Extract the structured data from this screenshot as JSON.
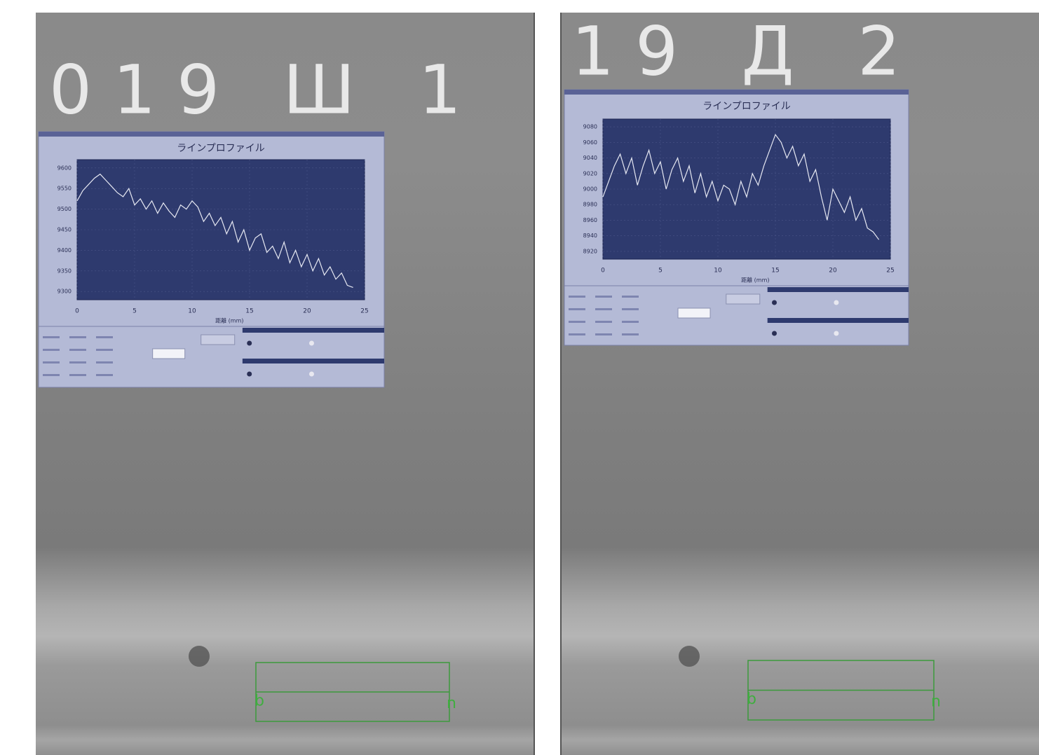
{
  "images": [
    {
      "stamp": "019 Ш 1",
      "markers": [
        "b",
        "n"
      ]
    },
    {
      "stamp": "19 Д 2",
      "markers": [
        "b",
        "n"
      ]
    }
  ],
  "chart_data": [
    {
      "type": "line",
      "title": "ラインプロファイル",
      "x_label": "距離 (mm)",
      "color": "#e6e8f2",
      "grid": true,
      "x": [
        0,
        0.5,
        1,
        1.5,
        2,
        2.5,
        3,
        3.5,
        4,
        4.5,
        5,
        5.5,
        6,
        6.5,
        7,
        7.5,
        8,
        8.5,
        9,
        9.5,
        10,
        10.5,
        11,
        11.5,
        12,
        12.5,
        13,
        13.5,
        14,
        14.5,
        15,
        15.5,
        16,
        16.5,
        17,
        17.5,
        18,
        18.5,
        19,
        19.5,
        20,
        20.5,
        21,
        21.5,
        22,
        22.5,
        23,
        23.5,
        24
      ],
      "values": [
        9520,
        9545,
        9560,
        9575,
        9585,
        9570,
        9555,
        9540,
        9530,
        9550,
        9510,
        9525,
        9500,
        9520,
        9490,
        9515,
        9495,
        9480,
        9510,
        9500,
        9520,
        9505,
        9470,
        9490,
        9460,
        9480,
        9440,
        9470,
        9420,
        9450,
        9400,
        9430,
        9440,
        9395,
        9410,
        9380,
        9420,
        9370,
        9400,
        9360,
        9390,
        9350,
        9380,
        9340,
        9360,
        9330,
        9345,
        9315,
        9310
      ],
      "xlim": [
        0,
        25
      ],
      "xticks": [
        0,
        5,
        10,
        15,
        20,
        25
      ],
      "ylim": [
        9280,
        9620
      ],
      "yticks": [
        9300,
        9350,
        9400,
        9450,
        9500,
        9550,
        9600
      ]
    },
    {
      "type": "line",
      "title": "ラインプロファイル",
      "x_label": "距離 (mm)",
      "color": "#e6e8f2",
      "grid": true,
      "x": [
        0,
        0.5,
        1,
        1.5,
        2,
        2.5,
        3,
        3.5,
        4,
        4.5,
        5,
        5.5,
        6,
        6.5,
        7,
        7.5,
        8,
        8.5,
        9,
        9.5,
        10,
        10.5,
        11,
        11.5,
        12,
        12.5,
        13,
        13.5,
        14,
        14.5,
        15,
        15.5,
        16,
        16.5,
        17,
        17.5,
        18,
        18.5,
        19,
        19.5,
        20,
        20.5,
        21,
        21.5,
        22,
        22.5,
        23,
        23.5,
        24
      ],
      "values": [
        8990,
        9010,
        9030,
        9045,
        9020,
        9040,
        9005,
        9030,
        9050,
        9020,
        9035,
        9000,
        9025,
        9040,
        9010,
        9030,
        8995,
        9020,
        8990,
        9010,
        8985,
        9005,
        9000,
        8980,
        9010,
        8990,
        9020,
        9005,
        9030,
        9050,
        9070,
        9060,
        9040,
        9055,
        9030,
        9045,
        9010,
        9025,
        8990,
        8960,
        9000,
        8985,
        8970,
        8990,
        8960,
        8975,
        8950,
        8945,
        8935
      ],
      "xlim": [
        0,
        25
      ],
      "xticks": [
        0,
        5,
        10,
        15,
        20,
        25
      ],
      "ylim": [
        8910,
        9090
      ],
      "yticks": [
        8920,
        8940,
        8960,
        8980,
        9000,
        9020,
        9040,
        9060,
        9080
      ]
    }
  ]
}
